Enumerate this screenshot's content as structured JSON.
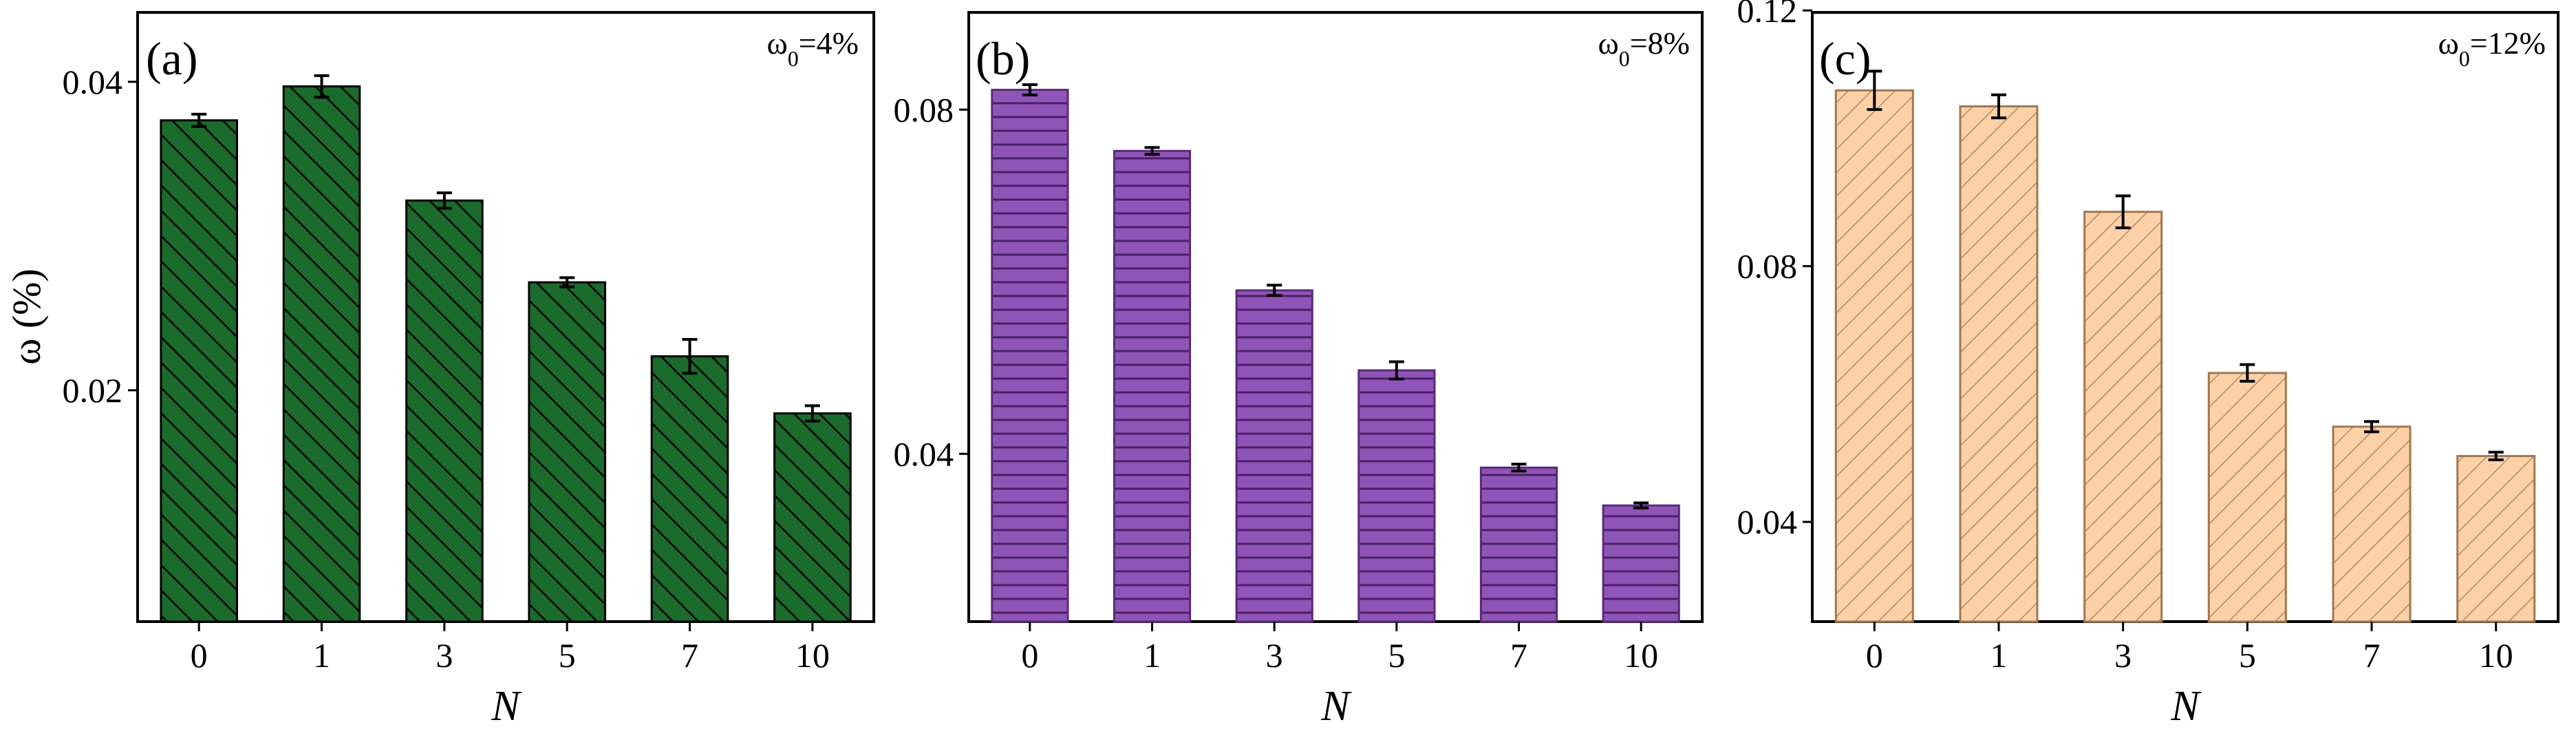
{
  "chart_data": [
    {
      "type": "bar",
      "panel_label": "(a)",
      "annotation": {
        "symbol": "ω",
        "subscript": "0",
        "value": "=4%"
      },
      "xlabel": "N",
      "ylabel": "ω (%)",
      "categories": [
        "0",
        "1",
        "3",
        "5",
        "7",
        "10"
      ],
      "values": [
        0.0375,
        0.0397,
        0.0323,
        0.027,
        0.0222,
        0.0185
      ],
      "errors": [
        0.0004,
        0.0007,
        0.0005,
        0.0003,
        0.0011,
        0.0005
      ],
      "ylim": [
        0.005,
        0.0445
      ],
      "yticks": [
        0.02,
        0.04
      ],
      "ytick_labels": [
        "0.02",
        "0.04"
      ],
      "fill": "#1a6b2c",
      "pattern": "back-diagonal hatch",
      "edge_color": "#000000"
    },
    {
      "type": "bar",
      "panel_label": "(b)",
      "annotation": {
        "symbol": "ω",
        "subscript": "0",
        "value": "=8%"
      },
      "xlabel": "N",
      "ylabel": "",
      "categories": [
        "0",
        "1",
        "3",
        "5",
        "7",
        "10"
      ],
      "values": [
        0.0823,
        0.0752,
        0.059,
        0.0497,
        0.0384,
        0.034
      ],
      "errors": [
        0.0006,
        0.0004,
        0.0006,
        0.001,
        0.0004,
        0.0003
      ],
      "ylim": [
        0.0205,
        0.0913
      ],
      "yticks": [
        0.04,
        0.08
      ],
      "ytick_labels": [
        "0.04",
        "0.08"
      ],
      "fill": "#8e55b6",
      "pattern": "horizontal lines",
      "edge_color": "#5a2a7a"
    },
    {
      "type": "bar",
      "panel_label": "(c)",
      "annotation": {
        "symbol": "ω",
        "subscript": "0",
        "value": "=12%"
      },
      "xlabel": "N",
      "ylabel": "",
      "categories": [
        "0",
        "1",
        "3",
        "5",
        "7",
        "10"
      ],
      "values": [
        0.1075,
        0.105,
        0.0885,
        0.0633,
        0.0549,
        0.0503
      ],
      "errors": [
        0.003,
        0.0018,
        0.0025,
        0.0013,
        0.0008,
        0.0006
      ],
      "ylim": [
        0.0244,
        0.1197
      ],
      "yticks": [
        0.04,
        0.08,
        0.12
      ],
      "ytick_labels": [
        "0.04",
        "0.08",
        "0.12"
      ],
      "fill": "#fcd1a8",
      "pattern": "forward-diagonal hatch",
      "edge_color": "#a07850"
    }
  ]
}
